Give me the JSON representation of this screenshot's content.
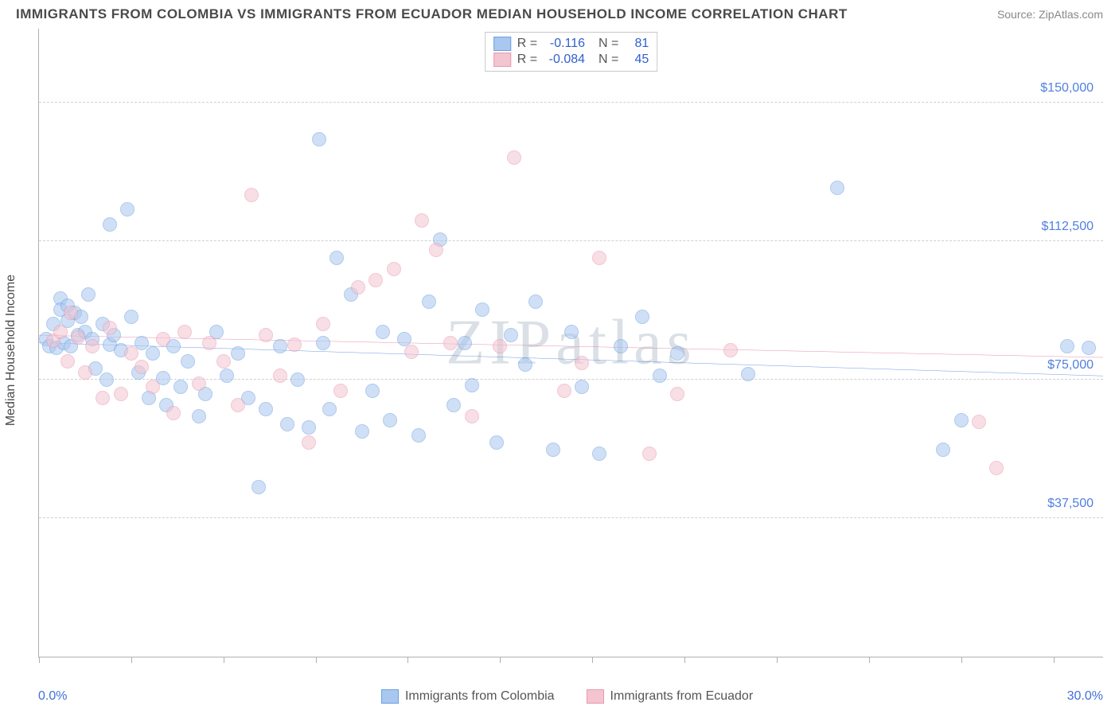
{
  "title": "IMMIGRANTS FROM COLOMBIA VS IMMIGRANTS FROM ECUADOR MEDIAN HOUSEHOLD INCOME CORRELATION CHART",
  "source": "Source: ZipAtlas.com",
  "watermark": "ZIPatlas",
  "y_axis_label": "Median Household Income",
  "chart": {
    "type": "scatter",
    "xlim": [
      0.0,
      30.0
    ],
    "ylim": [
      0,
      170000
    ],
    "x_tick_labels": [
      "0.0%",
      "30.0%"
    ],
    "y_ticks": [
      37500,
      75000,
      112500,
      150000
    ],
    "y_tick_labels": [
      "$37,500",
      "$75,000",
      "$112,500",
      "$150,000"
    ],
    "x_minor_ticks": [
      0,
      2.6,
      5.2,
      7.8,
      10.4,
      13.0,
      15.6,
      18.2,
      20.8,
      23.4,
      26.0,
      28.6
    ],
    "background_color": "#ffffff",
    "grid_color": "#d0d0d0",
    "axis_color": "#b0b0b0",
    "label_color": "#5080e0",
    "marker_radius": 9,
    "marker_opacity": 0.55
  },
  "series": [
    {
      "name": "Immigrants from Colombia",
      "fill": "#a8c8f0",
      "stroke": "#6e9fe0",
      "line_color": "#2f6fd8",
      "R": "-0.116",
      "N": "81",
      "trend": {
        "y_at_x0": 85000,
        "y_at_xmax": 76000
      },
      "points": [
        [
          0.2,
          86000
        ],
        [
          0.3,
          84000
        ],
        [
          0.4,
          90000
        ],
        [
          0.5,
          83500
        ],
        [
          0.6,
          97000
        ],
        [
          0.6,
          94000
        ],
        [
          0.7,
          85000
        ],
        [
          0.8,
          91000
        ],
        [
          0.8,
          95000
        ],
        [
          0.9,
          84000
        ],
        [
          1.0,
          93000
        ],
        [
          1.1,
          87000
        ],
        [
          1.2,
          92000
        ],
        [
          1.3,
          88000
        ],
        [
          1.4,
          98000
        ],
        [
          1.5,
          86000
        ],
        [
          1.6,
          78000
        ],
        [
          1.8,
          90000
        ],
        [
          1.9,
          75000
        ],
        [
          2.0,
          84500
        ],
        [
          2.0,
          117000
        ],
        [
          2.1,
          87000
        ],
        [
          2.3,
          83000
        ],
        [
          2.5,
          121000
        ],
        [
          2.6,
          92000
        ],
        [
          2.8,
          77000
        ],
        [
          2.9,
          85000
        ],
        [
          3.1,
          70000
        ],
        [
          3.2,
          82000
        ],
        [
          3.5,
          75500
        ],
        [
          3.6,
          68000
        ],
        [
          3.8,
          84000
        ],
        [
          4.0,
          73000
        ],
        [
          4.2,
          80000
        ],
        [
          4.5,
          65000
        ],
        [
          4.7,
          71000
        ],
        [
          5.0,
          88000
        ],
        [
          5.3,
          76000
        ],
        [
          5.6,
          82000
        ],
        [
          5.9,
          70000
        ],
        [
          6.2,
          46000
        ],
        [
          6.4,
          67000
        ],
        [
          6.8,
          84000
        ],
        [
          7.0,
          63000
        ],
        [
          7.3,
          75000
        ],
        [
          7.6,
          62000
        ],
        [
          7.9,
          140000
        ],
        [
          8.0,
          85000
        ],
        [
          8.2,
          67000
        ],
        [
          8.4,
          108000
        ],
        [
          8.8,
          98000
        ],
        [
          9.1,
          61000
        ],
        [
          9.4,
          72000
        ],
        [
          9.7,
          88000
        ],
        [
          9.9,
          64000
        ],
        [
          10.3,
          86000
        ],
        [
          10.7,
          60000
        ],
        [
          11.0,
          96000
        ],
        [
          11.3,
          113000
        ],
        [
          11.7,
          68000
        ],
        [
          12.0,
          85000
        ],
        [
          12.2,
          73500
        ],
        [
          12.5,
          94000
        ],
        [
          12.9,
          58000
        ],
        [
          13.3,
          87000
        ],
        [
          13.7,
          79000
        ],
        [
          14.0,
          96000
        ],
        [
          14.5,
          56000
        ],
        [
          15.0,
          88000
        ],
        [
          15.3,
          73000
        ],
        [
          15.8,
          55000
        ],
        [
          16.4,
          84000
        ],
        [
          17.0,
          92000
        ],
        [
          17.5,
          76000
        ],
        [
          18.0,
          82000
        ],
        [
          20.0,
          76500
        ],
        [
          22.5,
          127000
        ],
        [
          25.5,
          56000
        ],
        [
          26.0,
          64000
        ],
        [
          29.0,
          84000
        ],
        [
          29.6,
          83500
        ]
      ]
    },
    {
      "name": "Immigrants from Ecuador",
      "fill": "#f4c4d0",
      "stroke": "#e89ab0",
      "line_color": "#e05e88",
      "R": "-0.084",
      "N": "45",
      "trend": {
        "y_at_x0": 87000,
        "y_at_xmax": 81000
      },
      "points": [
        [
          0.4,
          85500
        ],
        [
          0.6,
          88000
        ],
        [
          0.8,
          80000
        ],
        [
          0.9,
          93000
        ],
        [
          1.1,
          86500
        ],
        [
          1.3,
          77000
        ],
        [
          1.5,
          84000
        ],
        [
          1.8,
          70000
        ],
        [
          2.0,
          89000
        ],
        [
          2.3,
          71000
        ],
        [
          2.6,
          82000
        ],
        [
          2.9,
          78500
        ],
        [
          3.2,
          73000
        ],
        [
          3.5,
          86000
        ],
        [
          3.8,
          66000
        ],
        [
          4.1,
          88000
        ],
        [
          4.5,
          74000
        ],
        [
          4.8,
          85000
        ],
        [
          5.2,
          80000
        ],
        [
          5.6,
          68000
        ],
        [
          6.0,
          125000
        ],
        [
          6.4,
          87000
        ],
        [
          6.8,
          76000
        ],
        [
          7.2,
          84500
        ],
        [
          7.6,
          58000
        ],
        [
          8.0,
          90000
        ],
        [
          8.5,
          72000
        ],
        [
          9.0,
          100000
        ],
        [
          9.5,
          102000
        ],
        [
          10.0,
          105000
        ],
        [
          10.5,
          82500
        ],
        [
          10.8,
          118000
        ],
        [
          11.2,
          110000
        ],
        [
          11.6,
          85000
        ],
        [
          12.2,
          65000
        ],
        [
          13.0,
          84000
        ],
        [
          13.4,
          135000
        ],
        [
          14.8,
          72000
        ],
        [
          15.3,
          79500
        ],
        [
          15.8,
          108000
        ],
        [
          17.2,
          55000
        ],
        [
          18.0,
          71000
        ],
        [
          19.5,
          83000
        ],
        [
          26.5,
          63500
        ],
        [
          27.0,
          51000
        ]
      ]
    }
  ]
}
